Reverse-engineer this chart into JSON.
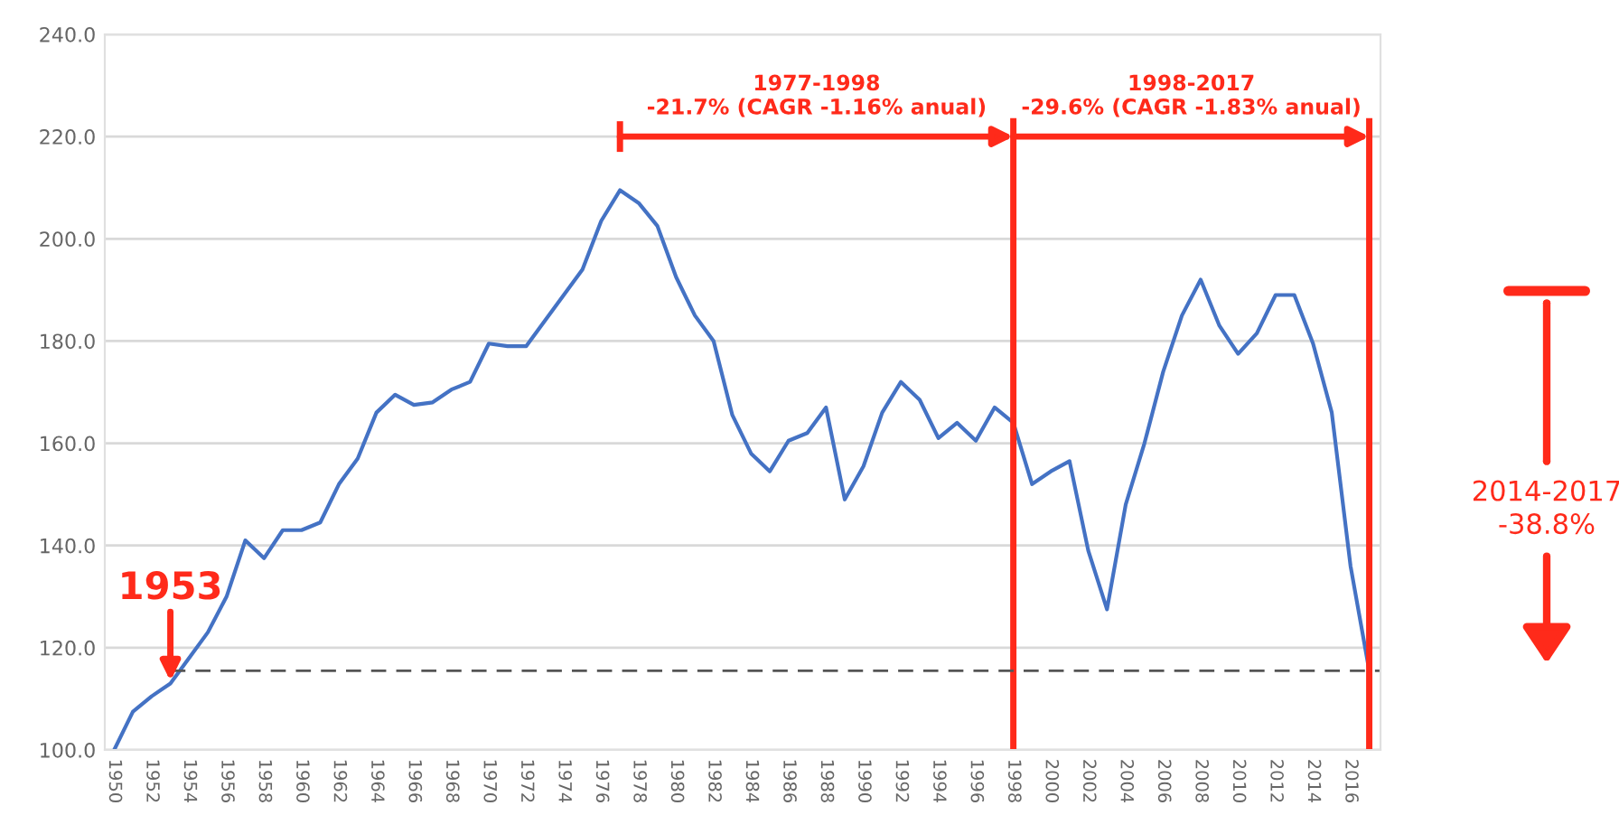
{
  "chart_data": {
    "type": "line",
    "x": [
      1950,
      1951,
      1952,
      1953,
      1954,
      1955,
      1956,
      1957,
      1958,
      1959,
      1960,
      1961,
      1962,
      1963,
      1964,
      1965,
      1966,
      1967,
      1968,
      1969,
      1970,
      1971,
      1972,
      1973,
      1974,
      1975,
      1976,
      1977,
      1978,
      1979,
      1980,
      1981,
      1982,
      1983,
      1984,
      1985,
      1986,
      1987,
      1988,
      1989,
      1990,
      1991,
      1992,
      1993,
      1994,
      1995,
      1996,
      1997,
      1998,
      1999,
      2000,
      2001,
      2002,
      2003,
      2004,
      2005,
      2006,
      2007,
      2008,
      2009,
      2010,
      2011,
      2012,
      2013,
      2014,
      2015,
      2016,
      2017
    ],
    "series": [
      {
        "color": "#4472c4",
        "values": [
          100,
          107.5,
          110.5,
          113,
          118,
          123,
          130,
          141,
          137.5,
          143,
          143,
          144.5,
          152,
          157,
          166,
          169.5,
          167.5,
          168,
          170.5,
          172,
          179.5,
          179,
          179,
          184,
          189,
          194,
          203.5,
          209.5,
          207,
          202.5,
          192.5,
          185,
          180,
          165.5,
          158,
          154.5,
          160.5,
          162,
          167,
          149,
          155.5,
          166,
          172,
          168.5,
          161,
          164,
          160.5,
          167,
          164,
          152,
          154.5,
          156.5,
          139,
          127.5,
          148,
          160,
          174,
          185,
          192,
          183,
          177.5,
          181.5,
          189,
          189,
          179.5,
          166,
          136,
          115.5
        ]
      }
    ],
    "xlim": [
      1949.5,
      2017.6
    ],
    "xticks": [
      1950,
      1952,
      1954,
      1956,
      1958,
      1960,
      1962,
      1964,
      1966,
      1968,
      1970,
      1972,
      1974,
      1976,
      1978,
      1980,
      1982,
      1984,
      1986,
      1988,
      1990,
      1992,
      1994,
      1996,
      1998,
      2000,
      2002,
      2004,
      2006,
      2008,
      2010,
      2012,
      2014,
      2016
    ],
    "ylim": [
      100,
      240
    ],
    "yticks": [
      {
        "value": 100,
        "label": "100.0"
      },
      {
        "value": 120,
        "label": "120.0"
      },
      {
        "value": 140,
        "label": "140.0"
      },
      {
        "value": 160,
        "label": "160.0"
      },
      {
        "value": 180,
        "label": "180.0"
      },
      {
        "value": 200,
        "label": "200.0"
      },
      {
        "value": 220,
        "label": "220.0"
      },
      {
        "value": 240,
        "label": "240.0"
      }
    ],
    "grid": "y",
    "marker": "none",
    "line_style": "solid",
    "legend": false,
    "ref_lines": [
      {
        "axis": "x",
        "value": 1998,
        "color": "#ff2a1a",
        "line_style": "solid"
      },
      {
        "axis": "x",
        "value": 2017,
        "color": "#ff2a1a",
        "line_style": "solid"
      },
      {
        "axis": "y",
        "value": 115.5,
        "color": "#555555",
        "line_style": "dashed"
      }
    ],
    "annotations": [
      "1977-1998\n-21.7% (CAGR -1.16% anual)",
      "1998-2017\n-29.6% (CAGR -1.83% anual)",
      {
        "text": "1953",
        "x": 1953,
        "y": 113
      },
      "2014-2017\n-38.8%"
    ]
  }
}
